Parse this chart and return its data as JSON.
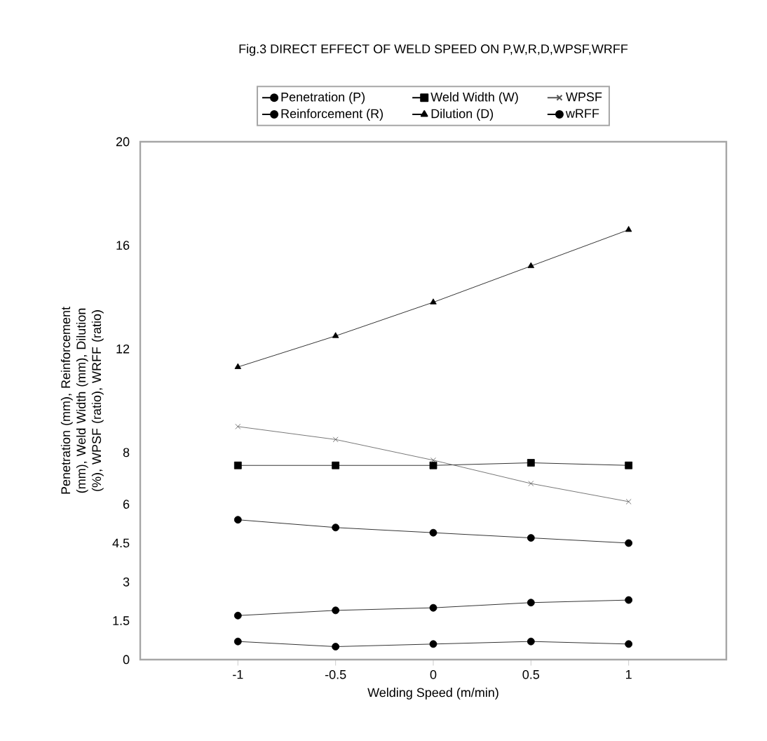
{
  "chart_data": {
    "type": "line",
    "title": "Fig.3 DIRECT EFFECT OF WELD SPEED ON P,W,R,D,WPSF,WRFF",
    "xlabel": "Welding Speed (m/min)",
    "ylabel": "Penetration (mm), Reinforcement (mm), Weld Width (mm), Dilution (%), WPSF (ratio), WRFF (ratio)",
    "x": [
      -1,
      -0.5,
      0,
      0.5,
      1
    ],
    "xlim": [
      -1.5,
      1.5
    ],
    "xticks": [
      -1,
      -0.5,
      0,
      0.5,
      1
    ],
    "ylim": [
      0,
      20
    ],
    "yticks": [
      0,
      1.5,
      3,
      4.5,
      6,
      8,
      12,
      16,
      20
    ],
    "legend": "top",
    "grid": false,
    "series": [
      {
        "name": "Penetration (P)",
        "color": "#000000",
        "marker": "circle",
        "values": [
          0.7,
          0.5,
          0.6,
          0.7,
          0.6
        ]
      },
      {
        "name": "Weld Width (W)",
        "color": "#000000",
        "marker": "square",
        "values": [
          7.5,
          7.5,
          7.5,
          7.6,
          7.5
        ]
      },
      {
        "name": "WPSF",
        "color": "#555555",
        "marker": "cross",
        "values": [
          9.0,
          8.5,
          7.7,
          6.8,
          6.1
        ]
      },
      {
        "name": "Reinforcement (R)",
        "color": "#000000",
        "marker": "circle",
        "values": [
          5.4,
          5.1,
          4.9,
          4.7,
          4.5
        ]
      },
      {
        "name": "Dilution (D)",
        "color": "#000000",
        "marker": "triangle",
        "values": [
          11.3,
          12.5,
          13.8,
          15.2,
          16.6
        ]
      },
      {
        "name": "wRFF",
        "color": "#000000",
        "marker": "circle",
        "values": [
          1.7,
          1.9,
          2.0,
          2.2,
          2.3
        ]
      }
    ]
  }
}
